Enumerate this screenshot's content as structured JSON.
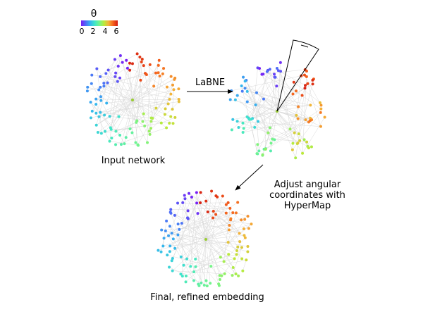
{
  "legend": {
    "symbol": "θ",
    "ticks": [
      "0",
      "2",
      "4",
      "6"
    ],
    "colormap": [
      "#7a1df5",
      "#4f6cf7",
      "#35b6ee",
      "#41e6c9",
      "#74f58b",
      "#b9ea3a",
      "#f4b23a",
      "#f5611b",
      "#d41d12"
    ]
  },
  "labels": {
    "input_network": "Input network",
    "labne": "LaBNE",
    "adjust": "Adjust angular coordinates with HyperMap",
    "final": "Final, refined embedding"
  },
  "style": {
    "edge_color": "#d9d9d9",
    "arrow_color": "#000000",
    "center_node_color": "#9acd32"
  }
}
